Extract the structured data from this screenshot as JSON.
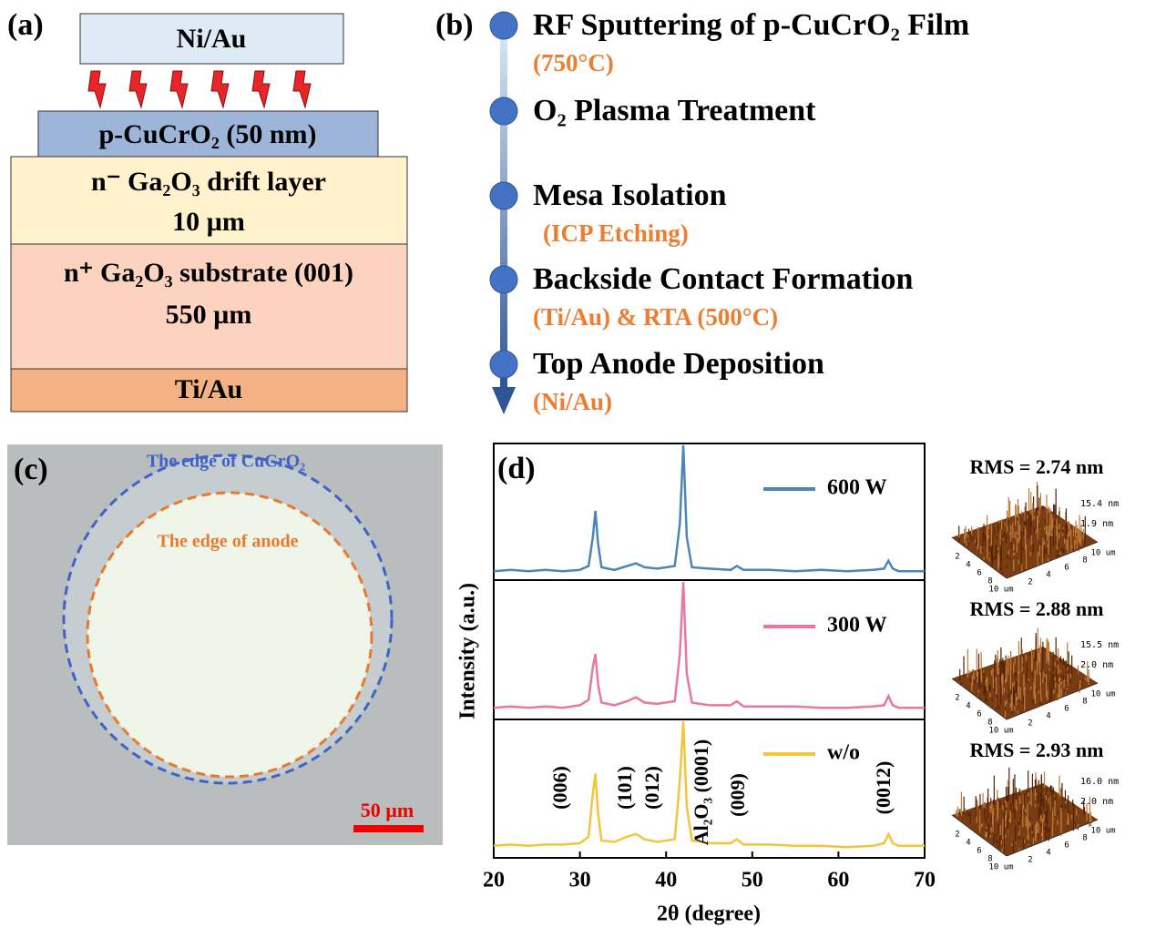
{
  "panel_a": {
    "label": "(a)",
    "layers": [
      "Ni/Au",
      "p-CuCrO₂ (50 nm)",
      "n⁻ Ga₂O₃ drift layer",
      "10 µm",
      "n⁺ Ga₂O₃ substrate (001)",
      "550 µm",
      "Ti/Au"
    ]
  },
  "panel_b": {
    "label": "(b)",
    "steps": [
      {
        "title": "RF Sputtering of p-CuCrO₂ Film",
        "detail": "(750°C)"
      },
      {
        "title": "O₂ Plasma Treatment"
      },
      {
        "title": "Mesa Isolation",
        "detail": "(ICP Etching)"
      },
      {
        "title": "Backside Contact Formation",
        "detail": "(Ti/Au) & RTA (500°C)"
      },
      {
        "title": "Top Anode Deposition",
        "detail": "(Ni/Au)"
      }
    ]
  },
  "panel_c": {
    "label": "(c)",
    "outer_edge": "The edge of CuCrO₂",
    "inner_edge": "The edge of anode",
    "scale_bar": "50 µm"
  },
  "chart_data": {
    "type": "line",
    "panel_label": "(d)",
    "x_label": "2θ (degree)",
    "y_label": "Intensity (a.u.)",
    "xlim": [
      20,
      70
    ],
    "xticks": [
      20,
      30,
      40,
      50,
      60,
      70
    ],
    "ylim": [
      0,
      100
    ],
    "x": [
      20,
      22,
      24,
      26,
      28,
      30,
      31,
      31.5,
      31.8,
      32.1,
      32.5,
      34,
      35.5,
      36.5,
      37.5,
      39,
      41,
      41.6,
      42,
      42.4,
      43,
      45,
      47.5,
      48.2,
      49,
      52,
      55,
      58,
      61,
      64,
      65.3,
      65.8,
      66.3,
      67,
      70
    ],
    "series": [
      {
        "name": "600 W",
        "color": "#4a86b8",
        "values": [
          4,
          5,
          4,
          5,
          4,
          5,
          8,
          30,
          50,
          25,
          7,
          5,
          8,
          10,
          7,
          6,
          8,
          40,
          100,
          30,
          7,
          6,
          5,
          8,
          5,
          5,
          4,
          5,
          4,
          5,
          6,
          12,
          6,
          4,
          4
        ]
      },
      {
        "name": "300 W",
        "color": "#e8799a",
        "values": [
          4,
          5,
          4,
          5,
          4,
          6,
          10,
          35,
          45,
          22,
          8,
          6,
          9,
          12,
          8,
          7,
          9,
          45,
          100,
          30,
          8,
          6,
          6,
          9,
          5,
          5,
          5,
          4,
          4,
          5,
          6,
          13,
          6,
          4,
          4
        ]
      },
      {
        "name": "w/o",
        "color": "#f2c53d",
        "values": [
          5,
          6,
          5,
          6,
          6,
          7,
          12,
          45,
          60,
          30,
          9,
          8,
          12,
          14,
          10,
          8,
          10,
          55,
          100,
          35,
          9,
          7,
          7,
          10,
          6,
          6,
          5,
          5,
          4,
          5,
          7,
          14,
          7,
          5,
          5
        ]
      }
    ],
    "annotations": [
      "(006)",
      "(101)",
      "(012)",
      "Al₂O₃ (0001)",
      "(009)",
      "(0012)"
    ]
  },
  "afm": [
    {
      "rms": "RMS = 2.74 nm",
      "z_max": "15.4 nm",
      "z_mid": "1.9 nm"
    },
    {
      "rms": "RMS = 2.88 nm",
      "z_max": "15.5 nm",
      "z_mid": "2.0 nm"
    },
    {
      "rms": "RMS = 2.93 nm",
      "z_max": "16.0 nm",
      "z_mid": "2.0 nm"
    }
  ],
  "afm_ticks": [
    "2",
    "4",
    "6",
    "8",
    "10 um"
  ]
}
